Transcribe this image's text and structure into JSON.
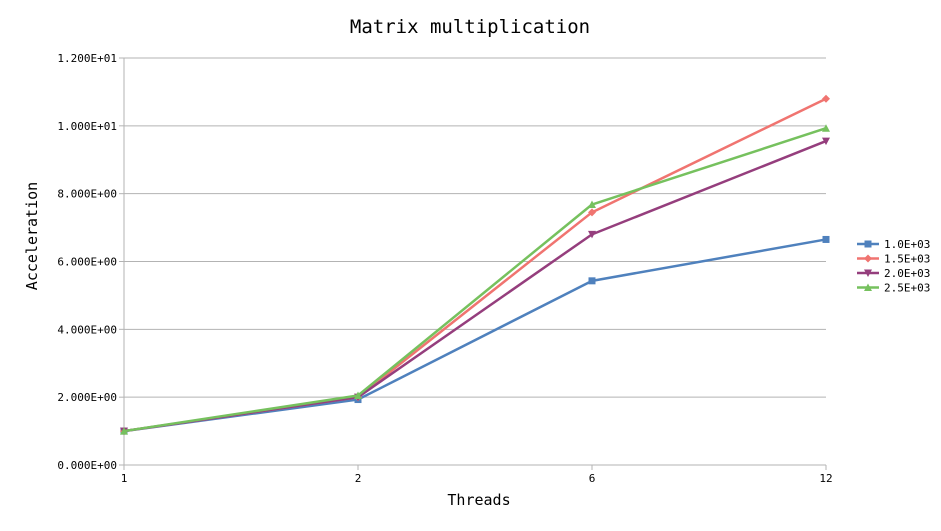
{
  "chart_data": {
    "type": "line",
    "title": "Matrix multiplication",
    "xlabel": "Threads",
    "ylabel": "Acceleration",
    "categories": [
      "1",
      "2",
      "6",
      "12"
    ],
    "ylim": [
      0,
      12
    ],
    "y_ticks": [
      0,
      2,
      4,
      6,
      8,
      10,
      12
    ],
    "y_tick_labels": [
      "0.000E+00",
      "2.000E+00",
      "4.000E+00",
      "6.000E+00",
      "8.000E+00",
      "1.000E+01",
      "1.200E+01"
    ],
    "grid": true,
    "legend_position": "right",
    "series": [
      {
        "name": "1.0E+03",
        "color": "#4F81BD",
        "marker": "square",
        "values": [
          1.0,
          1.93,
          5.43,
          6.65
        ]
      },
      {
        "name": "1.5E+03",
        "color": "#F07470",
        "marker": "diamond",
        "values": [
          1.0,
          2.0,
          7.45,
          10.8
        ]
      },
      {
        "name": "2.0E+03",
        "color": "#953E7D",
        "marker": "triangle-down",
        "values": [
          1.0,
          2.0,
          6.8,
          9.55
        ]
      },
      {
        "name": "2.5E+03",
        "color": "#76C15E",
        "marker": "triangle-up",
        "values": [
          1.0,
          2.05,
          7.68,
          9.93
        ]
      }
    ]
  }
}
